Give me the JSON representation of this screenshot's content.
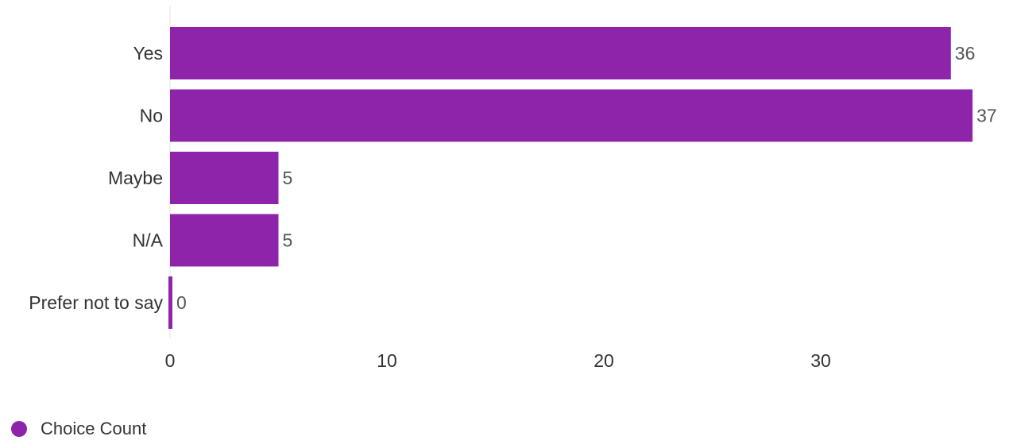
{
  "chart_data": {
    "type": "bar",
    "orientation": "horizontal",
    "categories": [
      "Yes",
      "No",
      "Maybe",
      "N/A",
      "Prefer not to say"
    ],
    "series": [
      {
        "name": "Choice Count",
        "values": [
          36,
          37,
          5,
          5,
          0
        ],
        "color": "#8e24aa"
      }
    ],
    "xticks": [
      0,
      10,
      20,
      30
    ],
    "xlim": [
      0,
      38
    ],
    "grid": false,
    "legend": "bottom-left"
  },
  "legend": {
    "label": "Choice Count"
  }
}
